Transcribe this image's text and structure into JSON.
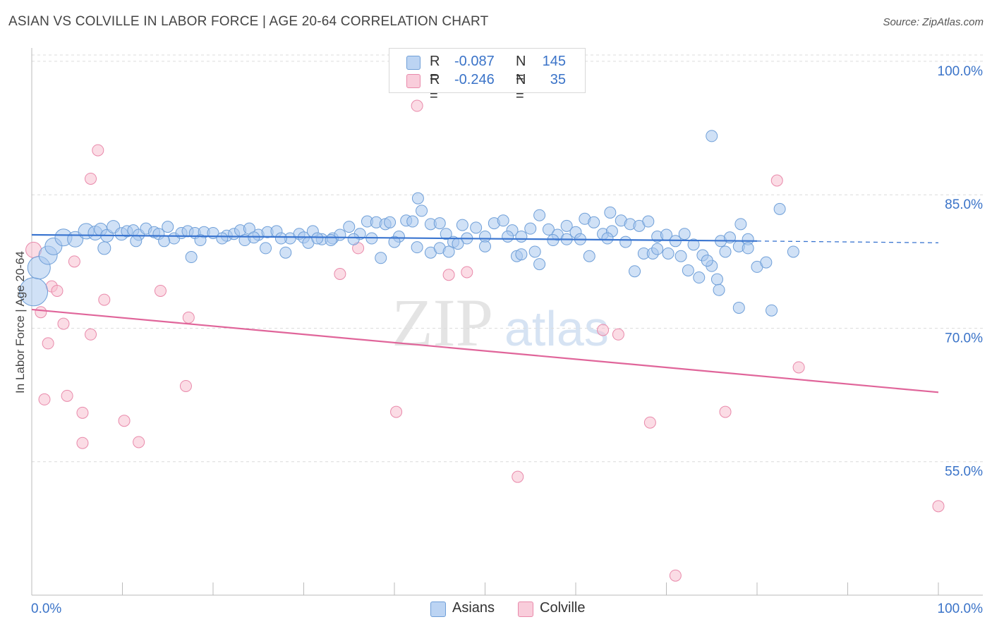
{
  "header": {
    "title": "ASIAN VS COLVILLE IN LABOR FORCE | AGE 20-64 CORRELATION CHART",
    "source": "Source: ZipAtlas.com"
  },
  "watermark": {
    "zip": "ZIP",
    "atlas": "atlas"
  },
  "colors": {
    "asian_fill": "#a9c8ef",
    "asian_stroke": "#6f9fd8",
    "asian_line": "#3a75d0",
    "colville_fill": "#f7bfd0",
    "colville_stroke": "#e98aab",
    "colville_line": "#e0659a",
    "axis_label": "#3a73c8",
    "grid": "#dcdcdc"
  },
  "legend": {
    "rows": [
      {
        "r_label": "R =",
        "r_value": "-0.087",
        "n_label": "N =",
        "n_value": "145"
      },
      {
        "r_label": "R =",
        "r_value": "-0.246",
        "n_label": "N =",
        "n_value": "35"
      }
    ]
  },
  "bottom_legend": {
    "asians": "Asians",
    "colville": "Colville"
  },
  "chart_data": {
    "type": "scatter",
    "title": "ASIAN VS COLVILLE IN LABOR FORCE | AGE 20-64 CORRELATION CHART",
    "xlabel": "",
    "ylabel": "In Labor Force | Age 20-64",
    "xlim": [
      0,
      100
    ],
    "ylim": [
      40,
      101.5
    ],
    "x_tick_labels": [
      "0.0%",
      "100.0%"
    ],
    "y_ticks": [
      55,
      70,
      85,
      100
    ],
    "y_tick_labels": [
      "55.0%",
      "70.0%",
      "85.0%",
      "100.0%"
    ],
    "grid": true,
    "series": [
      {
        "name": "Asians",
        "r": -0.087,
        "n": 145,
        "trend": {
          "x0": 0,
          "y0": 80.5,
          "x1": 80,
          "y1": 79.8,
          "dashed_to_x": 100,
          "dashed_to_y": 79.6
        },
        "points": [
          [
            0.2,
            74.1,
            20
          ],
          [
            0.8,
            76.8,
            16
          ],
          [
            1.8,
            78.2,
            13
          ],
          [
            2.4,
            79.2,
            12
          ],
          [
            3.5,
            80.2,
            12
          ],
          [
            4.8,
            80.0,
            11
          ],
          [
            6.0,
            80.9,
            11
          ],
          [
            7.0,
            80.7,
            10
          ],
          [
            7.6,
            81.1,
            9
          ],
          [
            8.3,
            80.4,
            9
          ],
          [
            9.0,
            81.4,
            9
          ],
          [
            9.9,
            80.6,
            9
          ],
          [
            10.5,
            80.9,
            8
          ],
          [
            11.2,
            81.0,
            8
          ],
          [
            11.8,
            80.5,
            8
          ],
          [
            12.6,
            81.2,
            8
          ],
          [
            13.5,
            80.8,
            8
          ],
          [
            14.0,
            80.6,
            8
          ],
          [
            15.0,
            81.4,
            8
          ],
          [
            15.7,
            80.1,
            8
          ],
          [
            16.5,
            80.7,
            8
          ],
          [
            17.2,
            80.9,
            8
          ],
          [
            18.0,
            80.7,
            8
          ],
          [
            19.0,
            80.8,
            8
          ],
          [
            20.0,
            80.7,
            8
          ],
          [
            21.5,
            80.4,
            8
          ],
          [
            22.3,
            80.6,
            8
          ],
          [
            23.0,
            81.0,
            8
          ],
          [
            24.0,
            81.2,
            8
          ],
          [
            25.0,
            80.5,
            8
          ],
          [
            26.0,
            80.8,
            8
          ],
          [
            27.0,
            80.9,
            8
          ],
          [
            28.5,
            80.1,
            8
          ],
          [
            29.5,
            80.6,
            8
          ],
          [
            30.0,
            80.2,
            8
          ],
          [
            31.0,
            80.9,
            8
          ],
          [
            32.0,
            80.0,
            8
          ],
          [
            33.2,
            80.1,
            8
          ],
          [
            34.0,
            80.5,
            8
          ],
          [
            35.0,
            81.4,
            8
          ],
          [
            36.2,
            80.6,
            8
          ],
          [
            37.0,
            82.0,
            8
          ],
          [
            38.0,
            81.9,
            8
          ],
          [
            39.0,
            81.7,
            8
          ],
          [
            39.5,
            81.9,
            8
          ],
          [
            40.5,
            80.3,
            8
          ],
          [
            41.3,
            82.1,
            8
          ],
          [
            42.0,
            82.0,
            8
          ],
          [
            43.0,
            83.2,
            8
          ],
          [
            44.0,
            81.7,
            8
          ],
          [
            45.0,
            81.8,
            8
          ],
          [
            45.7,
            80.6,
            8
          ],
          [
            46.5,
            79.7,
            8
          ],
          [
            47.5,
            81.6,
            8
          ],
          [
            48.0,
            80.1,
            8
          ],
          [
            49.0,
            81.3,
            8
          ],
          [
            50.0,
            80.3,
            8
          ],
          [
            51.0,
            81.8,
            8
          ],
          [
            52.0,
            82.1,
            8
          ],
          [
            53.0,
            81.0,
            8
          ],
          [
            54.0,
            80.3,
            8
          ],
          [
            55.0,
            81.2,
            8
          ],
          [
            56.0,
            82.7,
            8
          ],
          [
            57.0,
            81.1,
            8
          ],
          [
            58.0,
            80.5,
            8
          ],
          [
            59.0,
            81.5,
            8
          ],
          [
            60.0,
            80.8,
            8
          ],
          [
            61.0,
            82.3,
            8
          ],
          [
            62.0,
            81.9,
            8
          ],
          [
            63.0,
            80.6,
            8
          ],
          [
            64.0,
            80.9,
            8
          ],
          [
            65.0,
            82.1,
            8
          ],
          [
            66.0,
            81.7,
            8
          ],
          [
            67.0,
            81.5,
            8
          ],
          [
            68.0,
            82.0,
            8
          ],
          [
            69.0,
            80.3,
            8
          ],
          [
            70.0,
            80.5,
            8
          ],
          [
            71.0,
            79.8,
            8
          ],
          [
            72.0,
            80.6,
            8
          ],
          [
            73.0,
            79.4,
            8
          ],
          [
            74.0,
            78.2,
            8
          ],
          [
            75.0,
            77.0,
            8
          ],
          [
            76.0,
            79.8,
            8
          ],
          [
            77.0,
            80.2,
            8
          ],
          [
            78.0,
            79.2,
            8
          ],
          [
            79.0,
            80.0,
            8
          ],
          [
            8.0,
            79.0,
            9
          ],
          [
            11.5,
            79.8,
            8
          ],
          [
            14.6,
            79.8,
            8
          ],
          [
            17.6,
            78.0,
            8
          ],
          [
            18.6,
            79.9,
            8
          ],
          [
            21.0,
            80.1,
            8
          ],
          [
            23.5,
            79.9,
            8
          ],
          [
            24.5,
            80.2,
            8
          ],
          [
            25.8,
            79.0,
            8
          ],
          [
            27.5,
            80.1,
            8
          ],
          [
            28.0,
            78.5,
            8
          ],
          [
            30.5,
            79.6,
            8
          ],
          [
            31.5,
            80.1,
            8
          ],
          [
            33.0,
            79.9,
            8
          ],
          [
            35.5,
            80.0,
            8
          ],
          [
            37.5,
            80.1,
            8
          ],
          [
            38.5,
            77.9,
            8
          ],
          [
            40.0,
            79.7,
            8
          ],
          [
            42.5,
            79.1,
            8
          ],
          [
            44.0,
            78.5,
            8
          ],
          [
            45.0,
            79.0,
            8
          ],
          [
            46.0,
            78.6,
            8
          ],
          [
            47.0,
            79.5,
            8
          ],
          [
            50.0,
            79.2,
            8
          ],
          [
            52.5,
            80.3,
            8
          ],
          [
            53.5,
            78.1,
            8
          ],
          [
            54.0,
            78.3,
            8
          ],
          [
            55.5,
            78.6,
            8
          ],
          [
            56.0,
            77.2,
            8
          ],
          [
            57.5,
            79.9,
            8
          ],
          [
            59.0,
            80.0,
            8
          ],
          [
            60.5,
            80.0,
            8
          ],
          [
            61.5,
            78.1,
            8
          ],
          [
            63.5,
            80.1,
            8
          ],
          [
            65.5,
            79.7,
            8
          ],
          [
            66.5,
            76.4,
            8
          ],
          [
            67.5,
            78.4,
            8
          ],
          [
            68.5,
            78.4,
            8
          ],
          [
            69.0,
            78.9,
            8
          ],
          [
            70.2,
            78.4,
            8
          ],
          [
            71.6,
            78.1,
            8
          ],
          [
            72.4,
            76.5,
            8
          ],
          [
            73.6,
            75.7,
            8
          ],
          [
            74.5,
            77.6,
            8
          ],
          [
            75.6,
            75.5,
            8
          ],
          [
            75.8,
            74.3,
            8
          ],
          [
            76.5,
            78.6,
            8
          ],
          [
            78.0,
            72.3,
            8
          ],
          [
            79.0,
            79.0,
            8
          ],
          [
            80.0,
            76.9,
            8
          ],
          [
            81.0,
            77.4,
            8
          ],
          [
            82.5,
            83.4,
            8
          ],
          [
            84.0,
            78.6,
            8
          ],
          [
            75.0,
            91.6,
            8
          ],
          [
            78.2,
            81.7,
            8
          ],
          [
            81.6,
            72.0,
            8
          ],
          [
            63.8,
            83.0,
            8
          ],
          [
            42.6,
            84.6,
            8
          ]
        ]
      },
      {
        "name": "Colville",
        "r": -0.246,
        "n": 35,
        "trend": {
          "x0": 0,
          "y0": 72.1,
          "x1": 100,
          "y1": 62.8
        },
        "points": [
          [
            0.2,
            78.8,
            11
          ],
          [
            1.0,
            71.8,
            8
          ],
          [
            1.4,
            62.0,
            8
          ],
          [
            1.8,
            68.3,
            8
          ],
          [
            2.2,
            74.7,
            8
          ],
          [
            2.8,
            74.2,
            8
          ],
          [
            3.5,
            70.5,
            8
          ],
          [
            3.9,
            62.4,
            8
          ],
          [
            4.7,
            77.5,
            8
          ],
          [
            5.6,
            60.5,
            8
          ],
          [
            5.6,
            57.1,
            8
          ],
          [
            6.5,
            86.8,
            8
          ],
          [
            6.5,
            69.3,
            8
          ],
          [
            7.3,
            90.0,
            8
          ],
          [
            8.0,
            73.2,
            8
          ],
          [
            10.2,
            59.6,
            8
          ],
          [
            11.8,
            57.2,
            8
          ],
          [
            14.2,
            74.2,
            8
          ],
          [
            17.0,
            63.5,
            8
          ],
          [
            17.3,
            71.2,
            8
          ],
          [
            34.0,
            76.1,
            8
          ],
          [
            36.0,
            79.0,
            8
          ],
          [
            40.2,
            60.6,
            8
          ],
          [
            42.5,
            95.0,
            8
          ],
          [
            46.0,
            76.0,
            8
          ],
          [
            48.0,
            76.3,
            8
          ],
          [
            53.6,
            53.3,
            8
          ],
          [
            63.0,
            69.8,
            8
          ],
          [
            64.7,
            69.3,
            8
          ],
          [
            68.2,
            59.4,
            8
          ],
          [
            71.0,
            42.2,
            8
          ],
          [
            76.5,
            60.6,
            8
          ],
          [
            82.2,
            86.6,
            8
          ],
          [
            84.6,
            65.6,
            8
          ],
          [
            100,
            50.0,
            8
          ]
        ]
      }
    ]
  }
}
